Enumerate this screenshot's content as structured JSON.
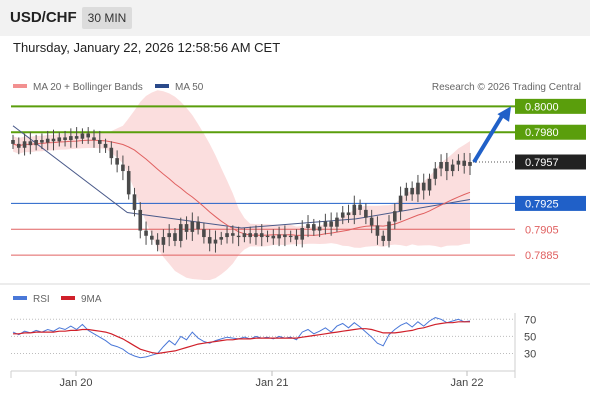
{
  "header": {
    "pair": "USD/CHF",
    "timeframe": "30 MIN"
  },
  "timestamp": "Thursday, January 22, 2026 12:58:56 AM CET",
  "legend": {
    "ma20_bb": "MA 20 + Bollinger Bands",
    "ma50": "MA 50",
    "credit": "Research © 2026 Trading Central",
    "rsi": "RSI",
    "ma9": "9MA"
  },
  "colors": {
    "green": "#5a9e0c",
    "blue": "#2060c8",
    "red": "#e06060",
    "dark": "#222222",
    "bb_fill": "#fbdada",
    "ma50": "#4a5a8a",
    "candle": "#4a4a4a",
    "rsi": "#4a78d8",
    "rsi_ma": "#d0202a"
  },
  "chart_data": [
    {
      "type": "candlestick",
      "title": "",
      "x_ticks": [
        "Jan 20",
        "Jan 21",
        "Jan 22"
      ],
      "ylim": [
        0.7872,
        0.8008
      ],
      "levels": [
        {
          "value": 0.8,
          "label": "0.8000",
          "role": "resistance",
          "color": "#5a9e0c",
          "style": "box"
        },
        {
          "value": 0.798,
          "label": "0.7980",
          "role": "resistance",
          "color": "#5a9e0c",
          "style": "box"
        },
        {
          "value": 0.7957,
          "label": "0.7957",
          "role": "last price",
          "color": "#222222",
          "style": "box"
        },
        {
          "value": 0.7925,
          "label": "0.7925",
          "role": "pivot",
          "color": "#2060c8",
          "style": "box"
        },
        {
          "value": 0.7905,
          "label": "0.7905",
          "role": "support",
          "color": "#e06060",
          "style": "text"
        },
        {
          "value": 0.7885,
          "label": "0.7885",
          "role": "support",
          "color": "#e06060",
          "style": "text"
        }
      ],
      "series": [
        {
          "name": "close",
          "values": [
            0.7971,
            0.7968,
            0.7973,
            0.797,
            0.7974,
            0.7972,
            0.7975,
            0.7973,
            0.7976,
            0.7974,
            0.7977,
            0.7975,
            0.7979,
            0.7976,
            0.7974,
            0.7971,
            0.7968,
            0.796,
            0.7955,
            0.795,
            0.7932,
            0.792,
            0.7904,
            0.79,
            0.7897,
            0.7893,
            0.7899,
            0.7902,
            0.7896,
            0.7909,
            0.7903,
            0.7911,
            0.7905,
            0.7899,
            0.7894,
            0.7897,
            0.7899,
            0.7902,
            0.79,
            0.7899,
            0.7902,
            0.7899,
            0.7902,
            0.7899,
            0.79,
            0.7898,
            0.7901,
            0.7899,
            0.79,
            0.7897,
            0.7906,
            0.7909,
            0.7904,
            0.7907,
            0.7911,
            0.7907,
            0.7914,
            0.7918,
            0.7916,
            0.7924,
            0.792,
            0.7914,
            0.7908,
            0.79,
            0.7896,
            0.7911,
            0.7919,
            0.7931,
            0.7937,
            0.7932,
            0.7941,
            0.7935,
            0.7944,
            0.7952,
            0.7957,
            0.795,
            0.7955,
            0.7958,
            0.7954,
            0.7957
          ]
        },
        {
          "name": "MA 50",
          "values": [
            0.7985,
            0.7918,
            0.7906,
            0.7913,
            0.7928
          ]
        }
      ],
      "forecast_arrow": {
        "from": 0.7957,
        "to": 0.8
      }
    },
    {
      "type": "line",
      "title": "",
      "yticks": [
        70,
        50,
        30
      ],
      "ylim": [
        20,
        75
      ],
      "series": [
        {
          "name": "RSI",
          "values": [
            55,
            52,
            56,
            54,
            57,
            55,
            58,
            56,
            60,
            58,
            62,
            58,
            64,
            57,
            53,
            49,
            45,
            40,
            38,
            35,
            30,
            27,
            25,
            26,
            28,
            30,
            38,
            45,
            40,
            50,
            46,
            55,
            48,
            44,
            42,
            45,
            47,
            49,
            48,
            47,
            49,
            47,
            50,
            48,
            49,
            47,
            50,
            48,
            49,
            46,
            55,
            58,
            53,
            56,
            60,
            55,
            62,
            65,
            60,
            66,
            61,
            55,
            49,
            42,
            39,
            52,
            58,
            63,
            66,
            61,
            67,
            62,
            68,
            72,
            70,
            66,
            68,
            70,
            67,
            68
          ]
        },
        {
          "name": "9MA",
          "values": [
            53,
            53,
            54,
            54,
            55,
            55,
            55,
            55,
            56,
            56,
            57,
            57,
            58,
            58,
            57,
            56,
            55,
            53,
            50,
            47,
            43,
            39,
            35,
            33,
            31,
            30,
            31,
            32,
            33,
            35,
            37,
            39,
            41,
            42,
            43,
            44,
            45,
            46,
            46,
            47,
            47,
            47,
            48,
            48,
            48,
            48,
            48,
            48,
            48,
            48,
            49,
            50,
            51,
            52,
            53,
            54,
            55,
            56,
            57,
            58,
            59,
            59,
            58,
            56,
            54,
            54,
            54,
            55,
            56,
            57,
            59,
            60,
            62,
            64,
            65,
            66,
            66,
            67,
            67,
            67
          ]
        }
      ]
    }
  ]
}
